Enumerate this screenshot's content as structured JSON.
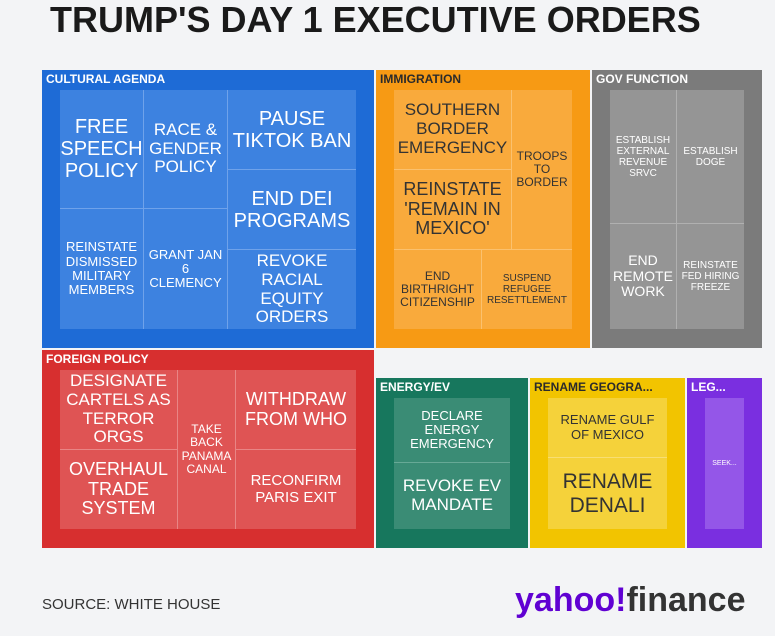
{
  "title": "TRUMP'S DAY 1 EXECUTIVE ORDERS",
  "source": "SOURCE: WHITE HOUSE",
  "logo": {
    "brand": "yahoo!",
    "product": "finance"
  },
  "colors": {
    "cultural": "#1e6bd6",
    "immigration": "#f79a14",
    "gov_function": "#7b7b7b",
    "foreign": "#d72f2f",
    "energy": "#17775d",
    "rename": "#f2c400",
    "legal": "#7a2fe0",
    "background": "#f3f4f6",
    "logo_purple": "#6001d2"
  },
  "chart_data": {
    "type": "treemap",
    "title": "TRUMP'S DAY 1 EXECUTIVE ORDERS",
    "groups": [
      {
        "name": "CULTURAL AGENDA",
        "items": [
          "FREE SPEECH POLICY",
          "RACE & GENDER POLICY",
          "PAUSE TIKTOK BAN",
          "END DEI PROGRAMS",
          "REINSTATE DISMISSED MILITARY MEMBERS",
          "GRANT JAN 6 CLEMENCY",
          "REVOKE RACIAL EQUITY ORDERS"
        ]
      },
      {
        "name": "IMMIGRATION",
        "items": [
          "SOUTHERN BORDER EMERGENCY",
          "REINSTATE 'REMAIN IN MEXICO'",
          "TROOPS TO BORDER",
          "END BIRTHRIGHT CITIZENSHIP",
          "SUSPEND REFUGEE RESETTLEMENT"
        ]
      },
      {
        "name": "GOV FUNCTION",
        "items": [
          "ESTABLISH EXTERNAL REVENUE SRVC",
          "ESTABLISH DOGE",
          "END REMOTE WORK",
          "REINSTATE FED HIRING FREEZE"
        ]
      },
      {
        "name": "FOREIGN POLICY",
        "items": [
          "DESIGNATE CARTELS AS TERROR ORGS",
          "OVERHAUL TRADE SYSTEM",
          "TAKE BACK PANAMA CANAL",
          "WITHDRAW FROM WHO",
          "RECONFIRM PARIS EXIT"
        ]
      },
      {
        "name": "ENERGY/EV",
        "items": [
          "DECLARE ENERGY EMERGENCY",
          "REVOKE EV MANDATE"
        ]
      },
      {
        "name": "RENAME GEOGRA...",
        "items": [
          "RENAME GULF OF MEXICO",
          "RENAME DENALI"
        ]
      },
      {
        "name": "LEG...",
        "items": [
          "SEEK..."
        ]
      }
    ]
  }
}
